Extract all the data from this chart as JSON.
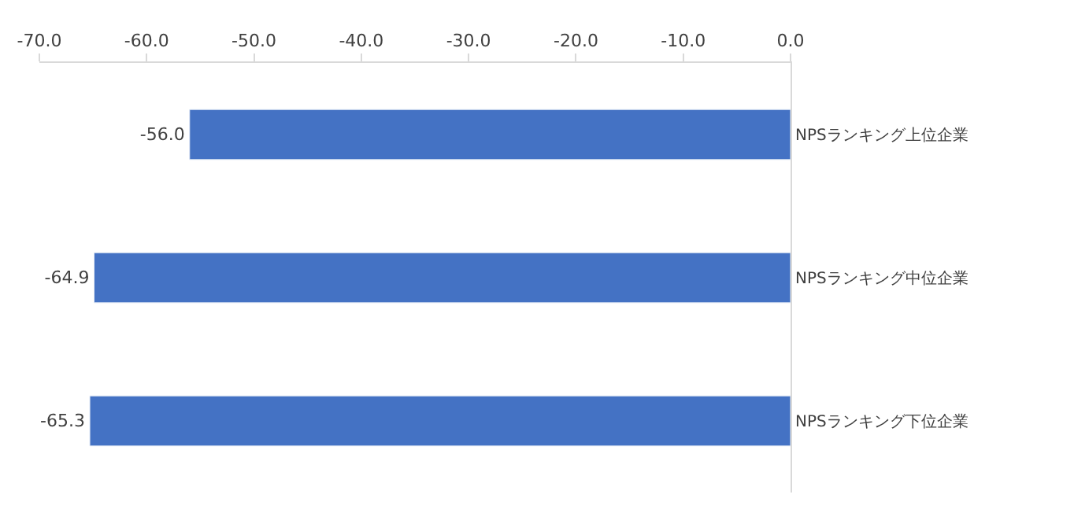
{
  "chart_data": {
    "type": "bar",
    "orientation": "horizontal",
    "categories": [
      "NPSランキング上位企業",
      "NPSランキング中位企業",
      "NPSランキング下位企業"
    ],
    "values": [
      -56.0,
      -64.9,
      -65.3
    ],
    "color": "#4472c4",
    "xlim": [
      -70,
      0
    ],
    "xticks": [
      {
        "value": -70,
        "label": "-70.0"
      },
      {
        "value": -60,
        "label": "-60.0"
      },
      {
        "value": -50,
        "label": "-50.0"
      },
      {
        "value": -40,
        "label": "-40.0"
      },
      {
        "value": -30,
        "label": "-30.0"
      },
      {
        "value": -20,
        "label": "-20.0"
      },
      {
        "value": -10,
        "label": "-10.0"
      },
      {
        "value": 0,
        "label": "0.0"
      }
    ],
    "value_labels": [
      "-56.0",
      "-64.9",
      "-65.3"
    ]
  }
}
